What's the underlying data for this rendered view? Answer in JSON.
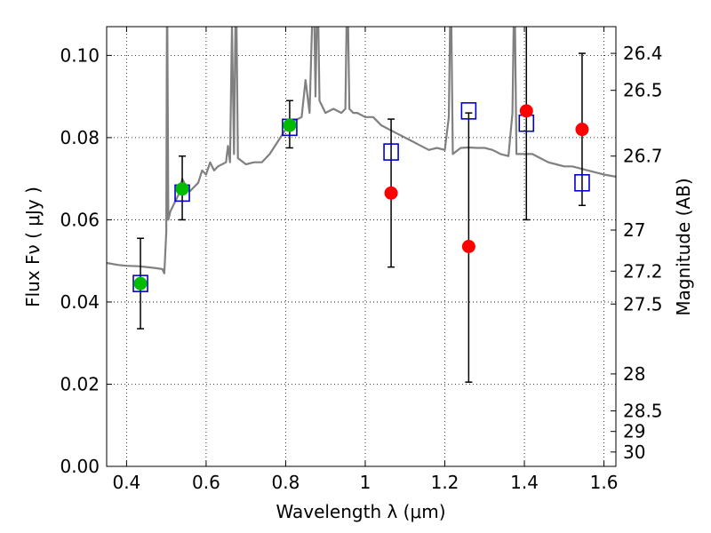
{
  "chart_data": {
    "type": "scatter",
    "xlabel": "Wavelength  λ (μm)",
    "ylabel": "Flux  Fν  ( μJy )",
    "y2label": "Magnitude (AB)",
    "xlim": [
      0.35,
      1.63
    ],
    "ylim": [
      0.0,
      0.107
    ],
    "grid": true,
    "x_ticks": [
      {
        "value": 0.4,
        "label": "0.4"
      },
      {
        "value": 0.6,
        "label": "0.6"
      },
      {
        "value": 0.8,
        "label": "0.8"
      },
      {
        "value": 1.0,
        "label": "1"
      },
      {
        "value": 1.2,
        "label": "1.2"
      },
      {
        "value": 1.4,
        "label": "1.4"
      },
      {
        "value": 1.6,
        "label": "1.6"
      }
    ],
    "y_ticks": [
      {
        "value": 0.0,
        "label": "0.00"
      },
      {
        "value": 0.02,
        "label": "0.02"
      },
      {
        "value": 0.04,
        "label": "0.04"
      },
      {
        "value": 0.06,
        "label": "0.06"
      },
      {
        "value": 0.08,
        "label": "0.08"
      },
      {
        "value": 0.1,
        "label": "0.10"
      }
    ],
    "right_ticks": [
      {
        "flux": 0.1005,
        "label": "26.4"
      },
      {
        "flux": 0.0915,
        "label": "26.5"
      },
      {
        "flux": 0.0755,
        "label": "26.7"
      },
      {
        "flux": 0.0575,
        "label": "27"
      },
      {
        "flux": 0.0475,
        "label": "27.2"
      },
      {
        "flux": 0.0395,
        "label": "27.5"
      },
      {
        "flux": 0.0225,
        "label": "28"
      },
      {
        "flux": 0.0135,
        "label": "28.5"
      },
      {
        "flux": 0.0085,
        "label": "29"
      },
      {
        "flux": 0.0035,
        "label": "30"
      }
    ],
    "colors": {
      "template": "#808080",
      "model": "#0000cc",
      "detection": "#00bb00",
      "nondetection": "#ff0000",
      "errorbar": "#000000",
      "grid": "#000000"
    },
    "series": [
      {
        "kind": "template_spectrum",
        "points": [
          [
            0.35,
            0.0495
          ],
          [
            0.38,
            0.049
          ],
          [
            0.4,
            0.0488
          ],
          [
            0.43,
            0.0487
          ],
          [
            0.45,
            0.0485
          ],
          [
            0.47,
            0.0483
          ],
          [
            0.49,
            0.048
          ],
          [
            0.495,
            0.047
          ],
          [
            0.5,
            0.057
          ],
          [
            0.502,
            0.12
          ],
          [
            0.505,
            0.06
          ],
          [
            0.51,
            0.062
          ],
          [
            0.52,
            0.064
          ],
          [
            0.53,
            0.066
          ],
          [
            0.54,
            0.07
          ],
          [
            0.55,
            0.068
          ],
          [
            0.56,
            0.067
          ],
          [
            0.57,
            0.068
          ],
          [
            0.58,
            0.069
          ],
          [
            0.59,
            0.072
          ],
          [
            0.6,
            0.071
          ],
          [
            0.61,
            0.074
          ],
          [
            0.62,
            0.072
          ],
          [
            0.63,
            0.073
          ],
          [
            0.65,
            0.074
          ],
          [
            0.655,
            0.078
          ],
          [
            0.66,
            0.074
          ],
          [
            0.665,
            0.107
          ],
          [
            0.67,
            0.076
          ],
          [
            0.675,
            0.12
          ],
          [
            0.68,
            0.075
          ],
          [
            0.7,
            0.0735
          ],
          [
            0.72,
            0.074
          ],
          [
            0.74,
            0.074
          ],
          [
            0.76,
            0.076
          ],
          [
            0.78,
            0.079
          ],
          [
            0.8,
            0.082
          ],
          [
            0.82,
            0.084
          ],
          [
            0.84,
            0.085
          ],
          [
            0.85,
            0.094
          ],
          [
            0.86,
            0.086
          ],
          [
            0.87,
            0.12
          ],
          [
            0.875,
            0.09
          ],
          [
            0.88,
            0.12
          ],
          [
            0.885,
            0.089
          ],
          [
            0.89,
            0.088
          ],
          [
            0.9,
            0.086
          ],
          [
            0.92,
            0.087
          ],
          [
            0.94,
            0.086
          ],
          [
            0.95,
            0.087
          ],
          [
            0.955,
            0.12
          ],
          [
            0.96,
            0.087
          ],
          [
            0.97,
            0.086
          ],
          [
            0.98,
            0.086
          ],
          [
            1.0,
            0.085
          ],
          [
            1.02,
            0.085
          ],
          [
            1.04,
            0.083
          ],
          [
            1.06,
            0.082
          ],
          [
            1.08,
            0.081
          ],
          [
            1.1,
            0.08
          ],
          [
            1.12,
            0.079
          ],
          [
            1.14,
            0.078
          ],
          [
            1.16,
            0.077
          ],
          [
            1.18,
            0.0775
          ],
          [
            1.2,
            0.077
          ],
          [
            1.21,
            0.085
          ],
          [
            1.215,
            0.12
          ],
          [
            1.22,
            0.076
          ],
          [
            1.24,
            0.0775
          ],
          [
            1.26,
            0.0776
          ],
          [
            1.28,
            0.0775
          ],
          [
            1.3,
            0.0775
          ],
          [
            1.32,
            0.077
          ],
          [
            1.34,
            0.076
          ],
          [
            1.36,
            0.0755
          ],
          [
            1.37,
            0.086
          ],
          [
            1.375,
            0.12
          ],
          [
            1.38,
            0.076
          ],
          [
            1.4,
            0.076
          ],
          [
            1.42,
            0.076
          ],
          [
            1.44,
            0.075
          ],
          [
            1.46,
            0.074
          ],
          [
            1.48,
            0.0735
          ],
          [
            1.5,
            0.073
          ],
          [
            1.52,
            0.073
          ],
          [
            1.54,
            0.0725
          ],
          [
            1.56,
            0.072
          ],
          [
            1.58,
            0.0715
          ],
          [
            1.6,
            0.071
          ],
          [
            1.63,
            0.0705
          ]
        ]
      },
      {
        "kind": "model_fluxes",
        "points": [
          [
            0.435,
            0.0445
          ],
          [
            0.54,
            0.0665
          ],
          [
            0.81,
            0.0825
          ],
          [
            1.065,
            0.0765
          ],
          [
            1.26,
            0.0865
          ],
          [
            1.405,
            0.0835
          ],
          [
            1.545,
            0.069
          ]
        ]
      },
      {
        "kind": "detections",
        "points": [
          {
            "x": 0.435,
            "y": 0.0445,
            "err_low": 0.0335,
            "err_high": 0.0555
          },
          {
            "x": 0.54,
            "y": 0.0675,
            "err_low": 0.06,
            "err_high": 0.0755
          },
          {
            "x": 0.81,
            "y": 0.083,
            "err_low": 0.0775,
            "err_high": 0.089
          }
        ]
      },
      {
        "kind": "nondetections",
        "points": [
          {
            "x": 1.065,
            "y": 0.0665,
            "err_low": 0.0485,
            "err_high": 0.0845
          },
          {
            "x": 1.26,
            "y": 0.0535,
            "err_low": 0.0205,
            "err_high": 0.086
          },
          {
            "x": 1.405,
            "y": 0.0865,
            "err_low": 0.06,
            "err_high": 0.12
          },
          {
            "x": 1.545,
            "y": 0.082,
            "err_low": 0.0635,
            "err_high": 0.1005
          }
        ]
      }
    ]
  }
}
